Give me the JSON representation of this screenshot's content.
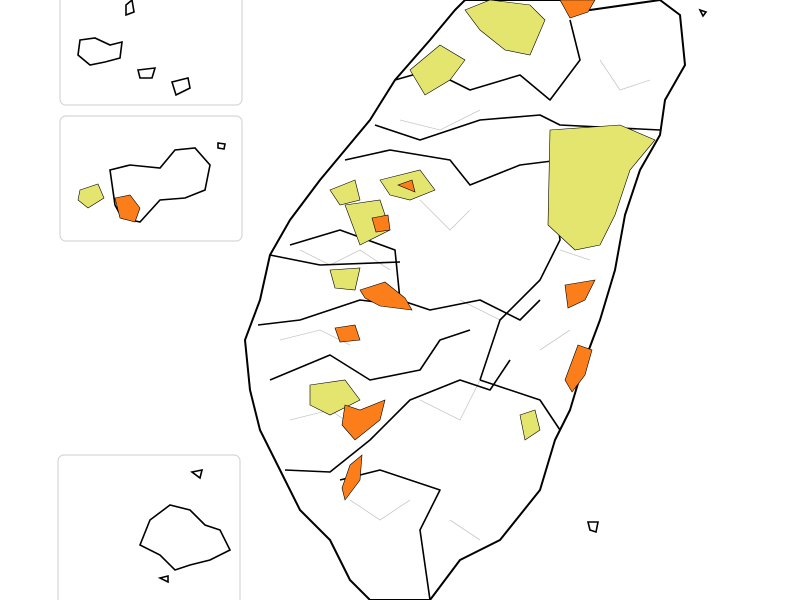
{
  "map": {
    "levels": [
      {
        "color": "#e3e56f"
      },
      {
        "color": "#fb7e1a"
      }
    ]
  }
}
